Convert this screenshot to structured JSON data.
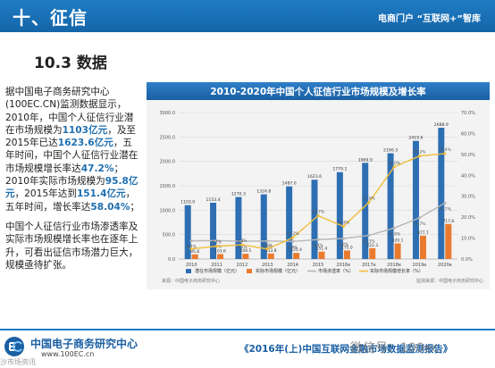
{
  "header": {
    "section_title": "十、征信",
    "top_right": "电商门户 “互联网+”智库"
  },
  "heading": "10.3 数据",
  "body": {
    "p1_a": "据中国电子商务研究中心(100EC.CN)监测数据显示，2010年，中国个人征信行业潜在市场规模为",
    "p1_h1": "1103亿元",
    "p1_b": "，及至2015年已达",
    "p1_h2": "1623.6亿元",
    "p1_c": "，五年时间，中国个人征信行业潜在市场规模增长率达",
    "p1_h3": "47.2%",
    "p1_d": "；2010年实际市场规模为",
    "p1_h4": "95.8亿元",
    "p1_e": "，2015年达到",
    "p1_h5": "151.4亿元",
    "p1_f": "，五年时间，增长率达",
    "p1_h6": "58.04%",
    "p1_g": "；",
    "p2": "中国个人征信行业市场渗透率及实际市场规模增长率也在逐年上升，可看出征信市场潜力巨大，规模亟待扩张。"
  },
  "chart_data": {
    "type": "bar",
    "title": "2010-2020年中国个人征信行业市场规模及增长率",
    "categories": [
      "2010",
      "2011",
      "2012",
      "2013",
      "2014",
      "2015",
      "2016e",
      "2017e",
      "2018e",
      "2019e",
      "2020e"
    ],
    "y_left_ticks": [
      "0.0",
      "500.0",
      "1000.0",
      "1500.0",
      "2000.0",
      "2500.0",
      "3000.0"
    ],
    "y_right_ticks": [
      "0.0%",
      "10.0%",
      "20.0%",
      "30.0%",
      "40.0%",
      "50.0%",
      "60.0%",
      "70.0%"
    ],
    "ylim_left": [
      0,
      3000
    ],
    "ylim_right": [
      0,
      70
    ],
    "series": [
      {
        "name": "潜在市场规模（亿元）",
        "kind": "bar",
        "color": "#2e6fb3",
        "values": [
          1103.0,
          1153.4,
          1270.3,
          1324.8,
          1487.0,
          1623.6,
          1779.1,
          1969.9,
          2166.3,
          2419.6,
          2688.9
        ],
        "labels": [
          "1103.0",
          "1153.4",
          "1270.3",
          "1324.8",
          "1487.0",
          "1623.6",
          "1779.1",
          "1969.9",
          "2166.3",
          "2419.6",
          "2688.9"
        ]
      },
      {
        "name": "实际市场规模（亿元）",
        "kind": "bar",
        "color": "#ea7b2e",
        "values": [
          95.8,
          101.6,
          108.5,
          113.8,
          125.4,
          151.4,
          175.0,
          222.3,
          320.1,
          477.7,
          717.8
        ],
        "labels": [
          "95.8",
          "101.6",
          "108.5",
          "113.8",
          "125.4",
          "151.4",
          "175.0",
          "222.3",
          "320.1",
          "477.7",
          "717.8"
        ]
      },
      {
        "name": "市场渗透率（%）",
        "kind": "line",
        "color": "#b6b6b6",
        "values": [
          8.7,
          8.8,
          8.5,
          8.6,
          8.4,
          9.3,
          9.8,
          11.3,
          14.8,
          19.7,
          26.7
        ],
        "labels": [
          "8.7%",
          "8.8%",
          "8.5%",
          "8.6%",
          "8.4%",
          "9.3%",
          "9.8%",
          "11.3%",
          "14.8%",
          "19.7%",
          "26.7%"
        ]
      },
      {
        "name": "实际市场规模增长率（%）",
        "kind": "line",
        "color": "#f0bd3a",
        "values": [
          4.9,
          6.1,
          6.8,
          4.8,
          10.2,
          20.7,
          15.6,
          27.0,
          44.0,
          49.2,
          50.4
        ],
        "labels": [
          "",
          "6.1%",
          "6.8%",
          "4.8%",
          "10.2%",
          "20.7%",
          "15.6%",
          "27.0%",
          "44.0%",
          "49.2%",
          "50.4%"
        ]
      }
    ],
    "legend_position": "bottom",
    "grid": true,
    "source_left": "来源：中国电子商务研究中心",
    "source_right": "监测来源：中国电子商务研究中心"
  },
  "footer": {
    "org_name": "中国电子商务研究中心",
    "org_url": "www.100EC.cn",
    "report_title": "《2016年(上)中国互联网金融市场数据监测报告》",
    "watermark": "微信号：100ec",
    "watermark_left": "沙市场资讯"
  },
  "colors": {
    "brand_blue": "#1f7cc4",
    "highlight": "#1f6fb0"
  },
  "icons": {
    "logo": "ec-logo-icon"
  }
}
